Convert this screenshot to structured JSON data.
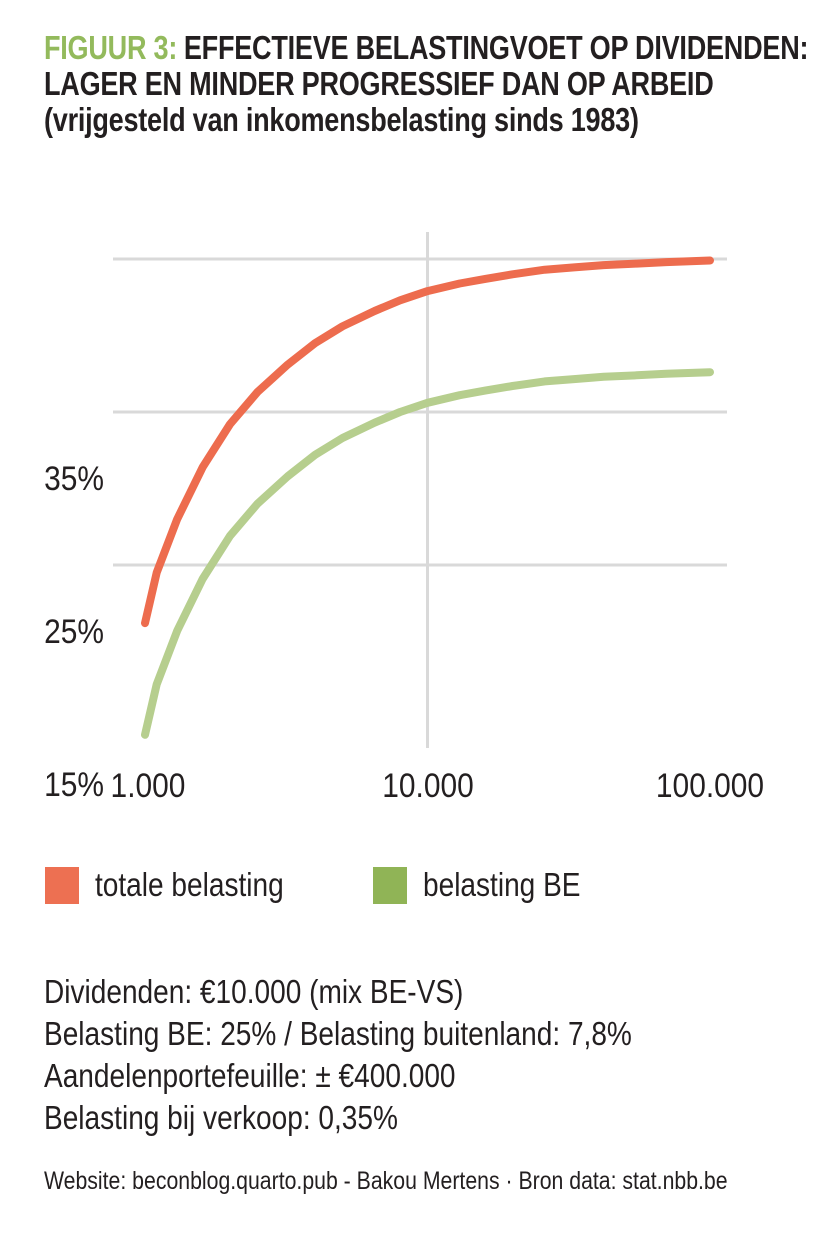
{
  "title": {
    "figure_label": "FIGUUR 3:",
    "line1_rest": "EFFECTIEVE BELASTINGVOET OP DIVIDENDEN:",
    "line2": "LAGER EN MINDER PROGRESSIEF DAN OP ARBEID",
    "line3": "(vrijgesteld van inkomensbelasting sinds 1983)"
  },
  "colors": {
    "figure_label_green": "#93ba5c",
    "title_text": "#231f20",
    "gridline": "#d9d9d9",
    "series_total": "#ed6c4e",
    "series_be": "#b6ce8e",
    "legend_total": "#ed7052",
    "legend_be": "#90b456",
    "text": "#231f20"
  },
  "chart_data": {
    "type": "line",
    "title": "Effectieve belastingvoet op dividenden",
    "x_scale": "log",
    "xlabel": "",
    "ylabel": "",
    "x_range": [
      1000,
      100000
    ],
    "y_range_pct": [
      2,
      36
    ],
    "grid": true,
    "x_ticks": [
      {
        "value": 1000,
        "label": "1.000"
      },
      {
        "value": 10000,
        "label": "10.000"
      },
      {
        "value": 100000,
        "label": "100.000"
      }
    ],
    "y_ticks": [
      {
        "value": 35,
        "label": "35%"
      },
      {
        "value": 25,
        "label": "25%"
      },
      {
        "value": 15,
        "label": "15%"
      }
    ],
    "y_gridlines": [
      35,
      25,
      15
    ],
    "x_gridlines": [
      10000
    ],
    "legend_position": "bottom-left",
    "series": [
      {
        "name": "totale belasting",
        "color": "#ed6c4e",
        "x": [
          1000,
          1100,
          1300,
          1600,
          2000,
          2500,
          3200,
          4000,
          5000,
          6500,
          8000,
          10000,
          13000,
          16000,
          20000,
          26000,
          33000,
          42000,
          55000,
          70000,
          100000
        ],
        "y": [
          11.2,
          14.5,
          18.0,
          21.4,
          24.2,
          26.3,
          28.1,
          29.5,
          30.6,
          31.6,
          32.3,
          32.9,
          33.4,
          33.7,
          34.0,
          34.3,
          34.45,
          34.6,
          34.7,
          34.8,
          34.9
        ]
      },
      {
        "name": "belasting BE",
        "color": "#b6ce8e",
        "x": [
          1000,
          1100,
          1300,
          1600,
          2000,
          2500,
          3200,
          4000,
          5000,
          6500,
          8000,
          10000,
          13000,
          16000,
          20000,
          26000,
          33000,
          42000,
          55000,
          70000,
          100000
        ],
        "y": [
          3.9,
          7.2,
          10.7,
          14.1,
          16.9,
          19.0,
          20.8,
          22.2,
          23.3,
          24.3,
          25.0,
          25.6,
          26.1,
          26.4,
          26.7,
          27.0,
          27.15,
          27.3,
          27.4,
          27.5,
          27.6
        ]
      }
    ]
  },
  "legend": [
    {
      "label": "totale belasting",
      "color": "#ed7052"
    },
    {
      "label": "belasting BE",
      "color": "#90b456"
    }
  ],
  "notes": {
    "lines": [
      "Dividenden: €10.000 (mix BE-VS)",
      "Belasting BE: 25% / Belasting buitenland: 7,8%",
      "Aandelenportefeuille: ± €400.000",
      "Belasting bij verkoop: 0,35%"
    ]
  },
  "footer": "Website: beconblog.quarto.pub - Bakou Mertens · Bron data: stat.nbb.be"
}
